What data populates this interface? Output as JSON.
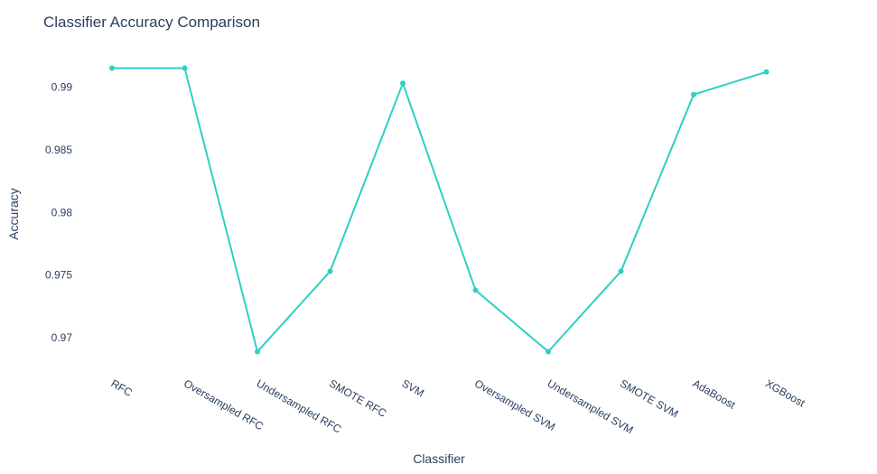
{
  "chart_data": {
    "type": "line",
    "title": "Classifier Accuracy Comparison",
    "xlabel": "Classifier",
    "ylabel": "Accuracy",
    "categories": [
      "RFC",
      "Oversampled RFC",
      "Undersampled RFC",
      "SMOTE RFC",
      "SVM",
      "Oversampled SVM",
      "Undersampled SVM",
      "SMOTE SVM",
      "AdaBoost",
      "XGBoost"
    ],
    "series": [
      {
        "values": [
          0.9915,
          0.9915,
          0.9689,
          0.9753,
          0.9903,
          0.9738,
          0.9689,
          0.9753,
          0.9894,
          0.9912
        ]
      }
    ],
    "yticks": [
      0.97,
      0.975,
      0.98,
      0.985,
      0.99
    ],
    "ytick_labels": [
      "0.97",
      "0.975",
      "0.98",
      "0.985",
      "0.99"
    ],
    "ylim": [
      0.9667,
      0.9937
    ],
    "grid": false,
    "color": "#2ecfc6"
  }
}
